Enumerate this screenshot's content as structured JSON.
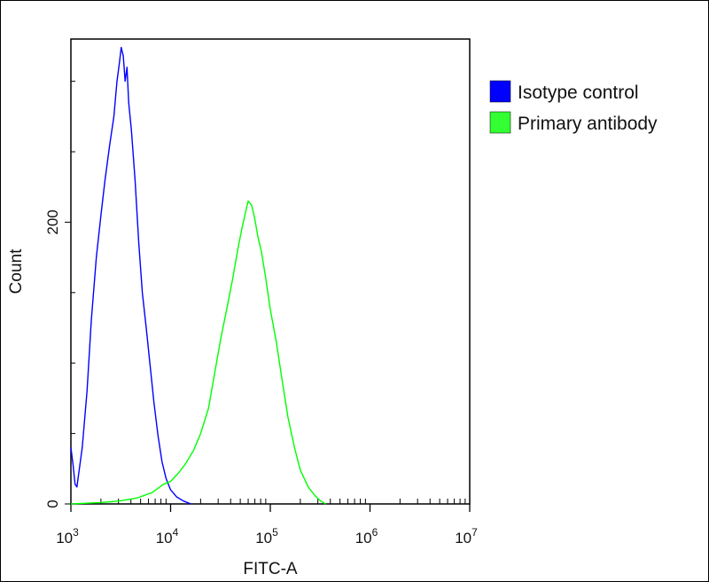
{
  "chart_data": {
    "type": "line",
    "xlabel": "FITC-A",
    "ylabel": "Count",
    "xscale": "log",
    "xlim": [
      1000,
      10000000
    ],
    "ylim": [
      0,
      330
    ],
    "x_ticks": [
      {
        "value": 1000,
        "base": "10",
        "exp": "3"
      },
      {
        "value": 10000,
        "base": "10",
        "exp": "4"
      },
      {
        "value": 100000,
        "base": "10",
        "exp": "5"
      },
      {
        "value": 1000000,
        "base": "10",
        "exp": "6"
      },
      {
        "value": 10000000,
        "base": "10",
        "exp": "7"
      }
    ],
    "y_ticks": [
      {
        "value": 0,
        "label": "0"
      },
      {
        "value": 200,
        "label": "200"
      }
    ],
    "legend_position": "right",
    "series": [
      {
        "name": "Isotype control",
        "color": "#0000ff",
        "legend_color": "#0000ff",
        "points": [
          [
            1000,
            40
          ],
          [
            1050,
            28
          ],
          [
            1100,
            14
          ],
          [
            1150,
            12
          ],
          [
            1200,
            22
          ],
          [
            1300,
            40
          ],
          [
            1450,
            80
          ],
          [
            1600,
            130
          ],
          [
            1800,
            175
          ],
          [
            2000,
            205
          ],
          [
            2200,
            230
          ],
          [
            2450,
            255
          ],
          [
            2700,
            275
          ],
          [
            2900,
            300
          ],
          [
            3050,
            312
          ],
          [
            3200,
            324
          ],
          [
            3350,
            318
          ],
          [
            3500,
            300
          ],
          [
            3650,
            310
          ],
          [
            3800,
            285
          ],
          [
            4050,
            265
          ],
          [
            4400,
            230
          ],
          [
            4800,
            185
          ],
          [
            5200,
            150
          ],
          [
            5700,
            125
          ],
          [
            6200,
            100
          ],
          [
            6800,
            72
          ],
          [
            7500,
            48
          ],
          [
            8200,
            30
          ],
          [
            9000,
            18
          ],
          [
            10000,
            10
          ],
          [
            11500,
            5
          ],
          [
            13500,
            2
          ],
          [
            16000,
            0
          ]
        ]
      },
      {
        "name": "Primary antibody",
        "color": "#00ff00",
        "legend_color": "#33ff33",
        "points": [
          [
            1000,
            0
          ],
          [
            2000,
            1
          ],
          [
            3000,
            2
          ],
          [
            4500,
            4
          ],
          [
            6500,
            8
          ],
          [
            8500,
            14
          ],
          [
            10000,
            16
          ],
          [
            12000,
            22
          ],
          [
            14000,
            28
          ],
          [
            17000,
            38
          ],
          [
            20000,
            50
          ],
          [
            24000,
            68
          ],
          [
            28000,
            95
          ],
          [
            32000,
            118
          ],
          [
            37000,
            140
          ],
          [
            42000,
            160
          ],
          [
            47000,
            180
          ],
          [
            52000,
            196
          ],
          [
            56000,
            206
          ],
          [
            60000,
            215
          ],
          [
            65000,
            212
          ],
          [
            70000,
            202
          ],
          [
            75000,
            190
          ],
          [
            82000,
            178
          ],
          [
            90000,
            160
          ],
          [
            100000,
            138
          ],
          [
            115000,
            115
          ],
          [
            130000,
            90
          ],
          [
            150000,
            62
          ],
          [
            175000,
            40
          ],
          [
            200000,
            24
          ],
          [
            240000,
            12
          ],
          [
            280000,
            6
          ],
          [
            320000,
            2
          ],
          [
            360000,
            0
          ]
        ]
      }
    ]
  }
}
